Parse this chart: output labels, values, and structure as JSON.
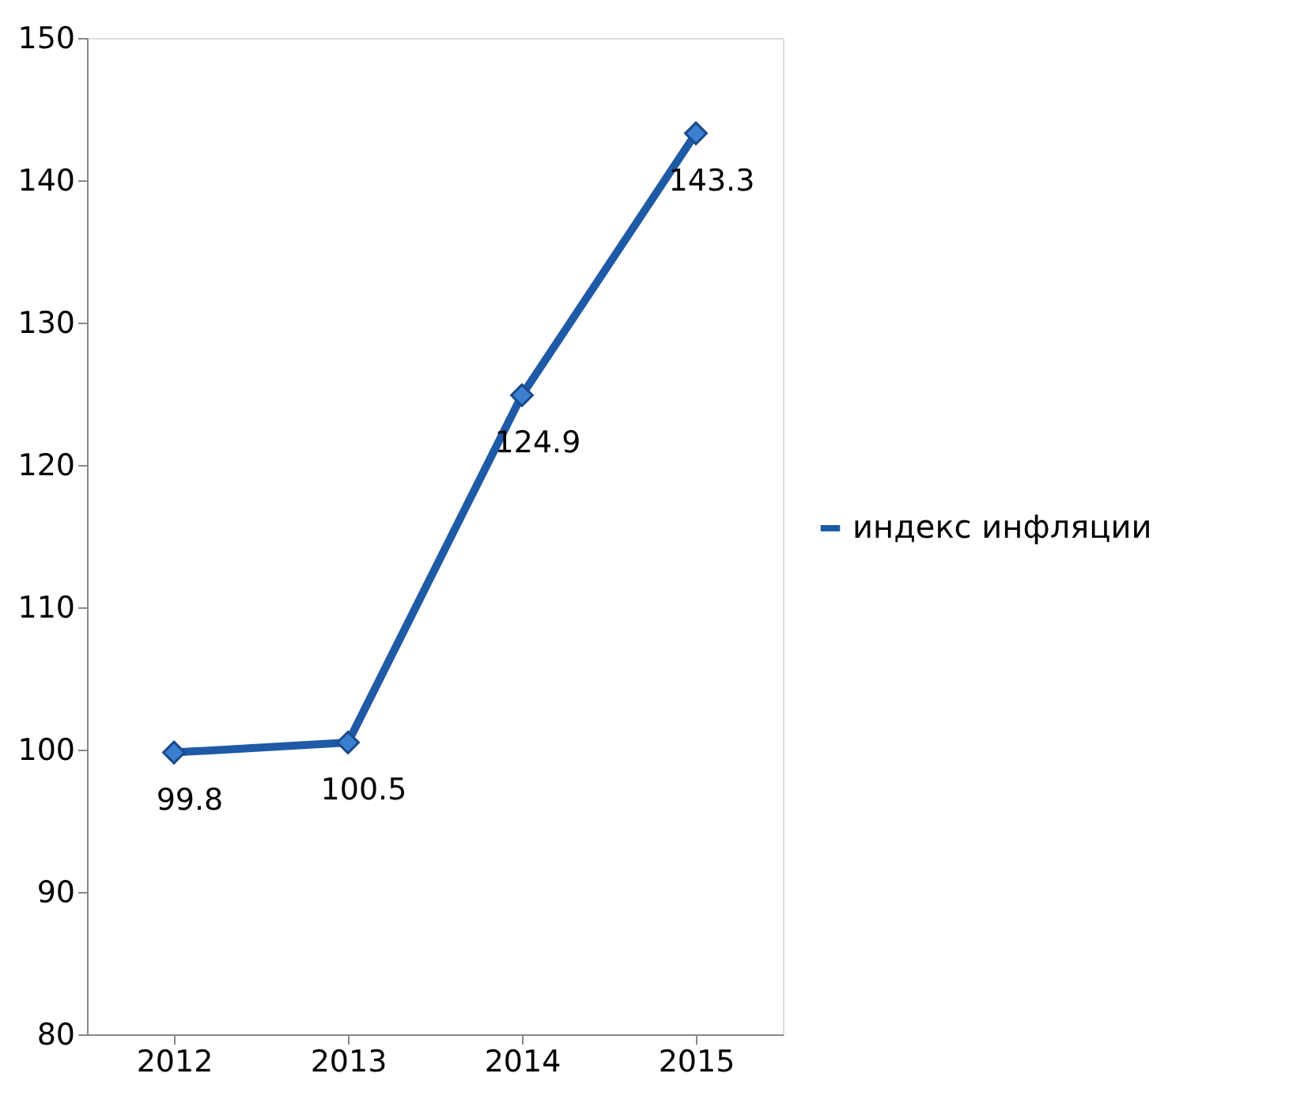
{
  "chart_data": {
    "type": "line",
    "categories": [
      "2012",
      "2013",
      "2014",
      "2015"
    ],
    "series": [
      {
        "name": "индекс инфляции",
        "color": "#1f5aa6",
        "values": [
          99.8,
          100.5,
          124.9,
          143.3
        ]
      }
    ],
    "ylim": [
      80,
      150
    ],
    "yticks": [
      80,
      90,
      100,
      110,
      120,
      130,
      140,
      150
    ],
    "grid": false,
    "legend": "right",
    "marker": "diamond",
    "line_style": "solid",
    "data_labels": true
  }
}
